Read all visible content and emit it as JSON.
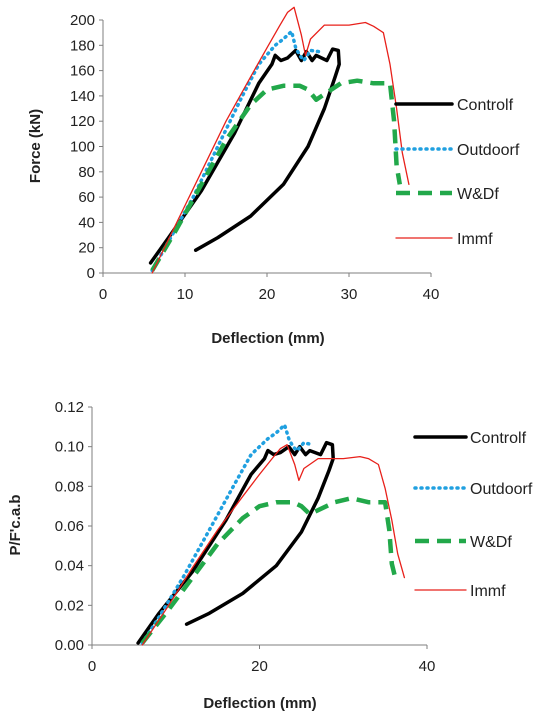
{
  "chart_data": [
    {
      "type": "line",
      "xlabel": "Deflection (mm)",
      "ylabel": "Force (kN)",
      "xlim": [
        0,
        40
      ],
      "ylim": [
        0,
        200
      ],
      "xticks": [
        "0",
        "10",
        "20",
        "30",
        "40"
      ],
      "yticks": [
        "0",
        "20",
        "40",
        "60",
        "80",
        "100",
        "120",
        "140",
        "160",
        "180",
        "200"
      ],
      "legend": "right",
      "series": [
        {
          "name": "Controlf",
          "color": "#000000",
          "style": "solid-thick",
          "x": [
            11.3,
            14,
            18,
            22,
            25,
            27,
            28.3,
            28.8,
            28.7,
            28.0,
            27.3,
            26,
            25.5,
            24.8,
            24.2,
            23.5,
            22.5,
            21.7,
            21.0,
            20.6,
            19,
            16,
            12,
            8,
            5.8
          ],
          "y": [
            18,
            28,
            45,
            70,
            100,
            130,
            155,
            165,
            176,
            177,
            168,
            172,
            168,
            175,
            168,
            176,
            170,
            168,
            172,
            165,
            150,
            110,
            65,
            28,
            8
          ]
        },
        {
          "name": "Outdoorf",
          "color": "#20a0e0",
          "style": "dotted",
          "x": [
            6,
            8,
            11,
            14,
            17,
            19,
            21,
            22,
            23,
            23.5,
            24,
            24.5,
            25.3,
            26.3
          ],
          "y": [
            2,
            25,
            60,
            100,
            140,
            165,
            180,
            185,
            191,
            178,
            172,
            168,
            176,
            175
          ]
        },
        {
          "name": "W&Df",
          "color": "#22a84a",
          "style": "dashed-thick",
          "x": [
            6,
            9,
            12,
            15,
            18,
            20,
            22,
            24,
            25,
            26,
            29,
            31,
            33,
            35,
            35.5,
            35.8,
            36.2
          ],
          "y": [
            2,
            35,
            70,
            105,
            133,
            145,
            148,
            148,
            145,
            137,
            150,
            152,
            150,
            150,
            120,
            85,
            70
          ]
        },
        {
          "name": "Immf",
          "color": "#e8201a",
          "style": "solid-thin",
          "x": [
            6,
            9,
            12,
            15,
            18,
            20,
            21.5,
            22.5,
            23.3,
            24.2,
            24.7,
            25.3,
            27,
            30,
            32,
            33,
            34.2,
            35,
            35.8,
            36.5,
            37.3
          ],
          "y": [
            0,
            40,
            80,
            120,
            155,
            178,
            195,
            206,
            210,
            188,
            172,
            185,
            196,
            196,
            198,
            195,
            190,
            165,
            130,
            95,
            70
          ]
        }
      ]
    },
    {
      "type": "line",
      "xlabel": "Deflection (mm)",
      "ylabel": "P/F'c.a.b",
      "xlim": [
        0,
        40
      ],
      "ylim": [
        0,
        0.12
      ],
      "xticks": [
        "0",
        "20",
        "40"
      ],
      "yticks": [
        "0.00",
        "0.02",
        "0.04",
        "0.06",
        "0.08",
        "0.10",
        "0.12"
      ],
      "legend": "right",
      "series": [
        {
          "name": "Controlf",
          "color": "#000000",
          "style": "solid-thick",
          "x": [
            11.3,
            14,
            18,
            22,
            25,
            27,
            28.3,
            28.8,
            28.7,
            28.0,
            27.3,
            26,
            25.5,
            24.8,
            24.2,
            23.5,
            22.5,
            21.7,
            21.0,
            20.6,
            19,
            16,
            12,
            8,
            5.5
          ],
          "y": [
            0.0105,
            0.016,
            0.026,
            0.04,
            0.057,
            0.074,
            0.088,
            0.094,
            0.101,
            0.102,
            0.096,
            0.098,
            0.096,
            0.1,
            0.096,
            0.1,
            0.097,
            0.096,
            0.098,
            0.094,
            0.086,
            0.063,
            0.037,
            0.016,
            0.001
          ]
        },
        {
          "name": "Outdoorf",
          "color": "#20a0e0",
          "style": "dotted",
          "x": [
            6,
            8,
            11,
            14,
            17,
            19,
            21,
            22,
            23,
            23.5,
            24,
            24.5,
            25.3,
            26.3
          ],
          "y": [
            0.001,
            0.014,
            0.035,
            0.058,
            0.081,
            0.096,
            0.104,
            0.107,
            0.111,
            0.104,
            0.1,
            0.098,
            0.102,
            0.101
          ]
        },
        {
          "name": "W&Df",
          "color": "#22a84a",
          "style": "dashed-thick",
          "x": [
            6,
            9,
            12,
            15,
            18,
            20,
            22,
            24,
            25,
            26,
            29,
            31,
            33,
            35,
            35.5,
            35.8,
            36.2
          ],
          "y": [
            0.001,
            0.017,
            0.034,
            0.051,
            0.064,
            0.07,
            0.072,
            0.072,
            0.07,
            0.066,
            0.072,
            0.074,
            0.072,
            0.072,
            0.058,
            0.041,
            0.034
          ]
        },
        {
          "name": "Immf",
          "color": "#e8201a",
          "style": "solid-thin",
          "x": [
            6,
            9,
            12,
            15,
            18,
            20,
            21.5,
            22.5,
            23.3,
            24.2,
            24.7,
            25.3,
            27,
            30,
            32,
            33,
            34.2,
            35,
            35.8,
            36.5,
            37.3
          ],
          "y": [
            0,
            0.019,
            0.039,
            0.058,
            0.075,
            0.086,
            0.094,
            0.099,
            0.101,
            0.091,
            0.083,
            0.089,
            0.094,
            0.094,
            0.095,
            0.094,
            0.091,
            0.079,
            0.063,
            0.046,
            0.034
          ]
        }
      ]
    }
  ]
}
